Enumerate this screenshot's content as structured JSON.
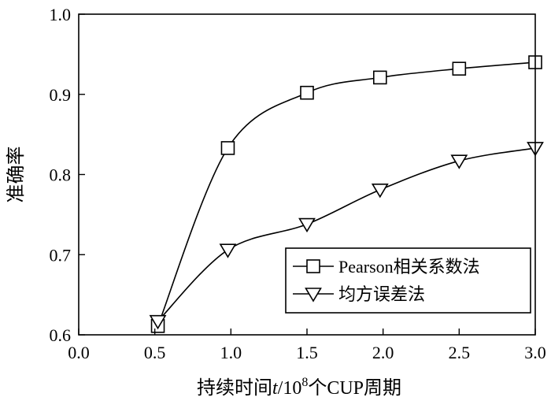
{
  "chart_data": {
    "type": "line",
    "xlabel": "持续时间t/10⁸个CUP周期",
    "xlabel_parts": {
      "prefix": "持续时间",
      "italic": "t",
      "mid": "/10",
      "sup": "8",
      "suffix": "个CUP周期"
    },
    "ylabel": "准确率",
    "xlim": [
      0.0,
      3.0
    ],
    "ylim": [
      0.6,
      1.0
    ],
    "x_ticks": [
      "0.0",
      "0.5",
      "1.0",
      "1.5",
      "2.0",
      "2.5",
      "3.0"
    ],
    "y_ticks": [
      "0.6",
      "0.7",
      "0.8",
      "0.9",
      "1.0"
    ],
    "grid": false,
    "legend_position": "bottom-right",
    "series": [
      {
        "name": "Pearson相关系数法",
        "marker": "square",
        "x": [
          0.52,
          0.98,
          1.5,
          1.98,
          2.5,
          3.0
        ],
        "y": [
          0.611,
          0.833,
          0.902,
          0.921,
          0.932,
          0.94
        ]
      },
      {
        "name": "均方误差法",
        "marker": "triangle-down",
        "x": [
          0.52,
          0.98,
          1.5,
          1.98,
          2.5,
          3.0
        ],
        "y": [
          0.617,
          0.706,
          0.738,
          0.781,
          0.817,
          0.833
        ]
      }
    ]
  }
}
